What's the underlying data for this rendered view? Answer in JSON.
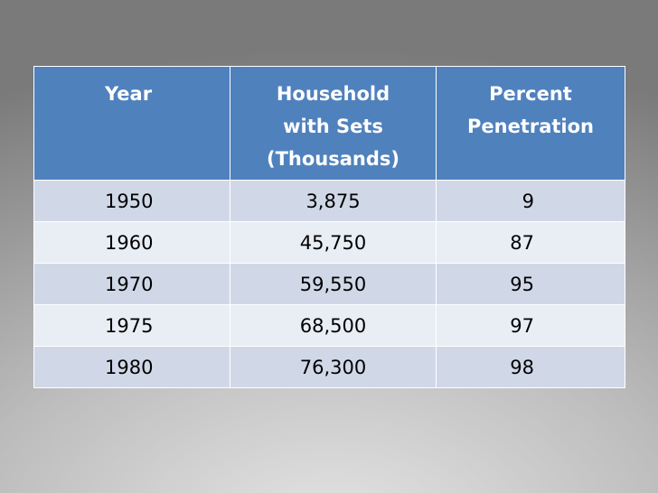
{
  "table": {
    "header": [
      "Year",
      "Household with Sets (Thousands)",
      "Percent Penetration"
    ],
    "rows": [
      [
        "1950",
        "3,875",
        "9"
      ],
      [
        "1960",
        "45,750",
        "87"
      ],
      [
        "1970",
        "59,550",
        "95"
      ],
      [
        "1975",
        "68,500",
        "97"
      ],
      [
        "1980",
        "76,300",
        "98"
      ]
    ]
  }
}
